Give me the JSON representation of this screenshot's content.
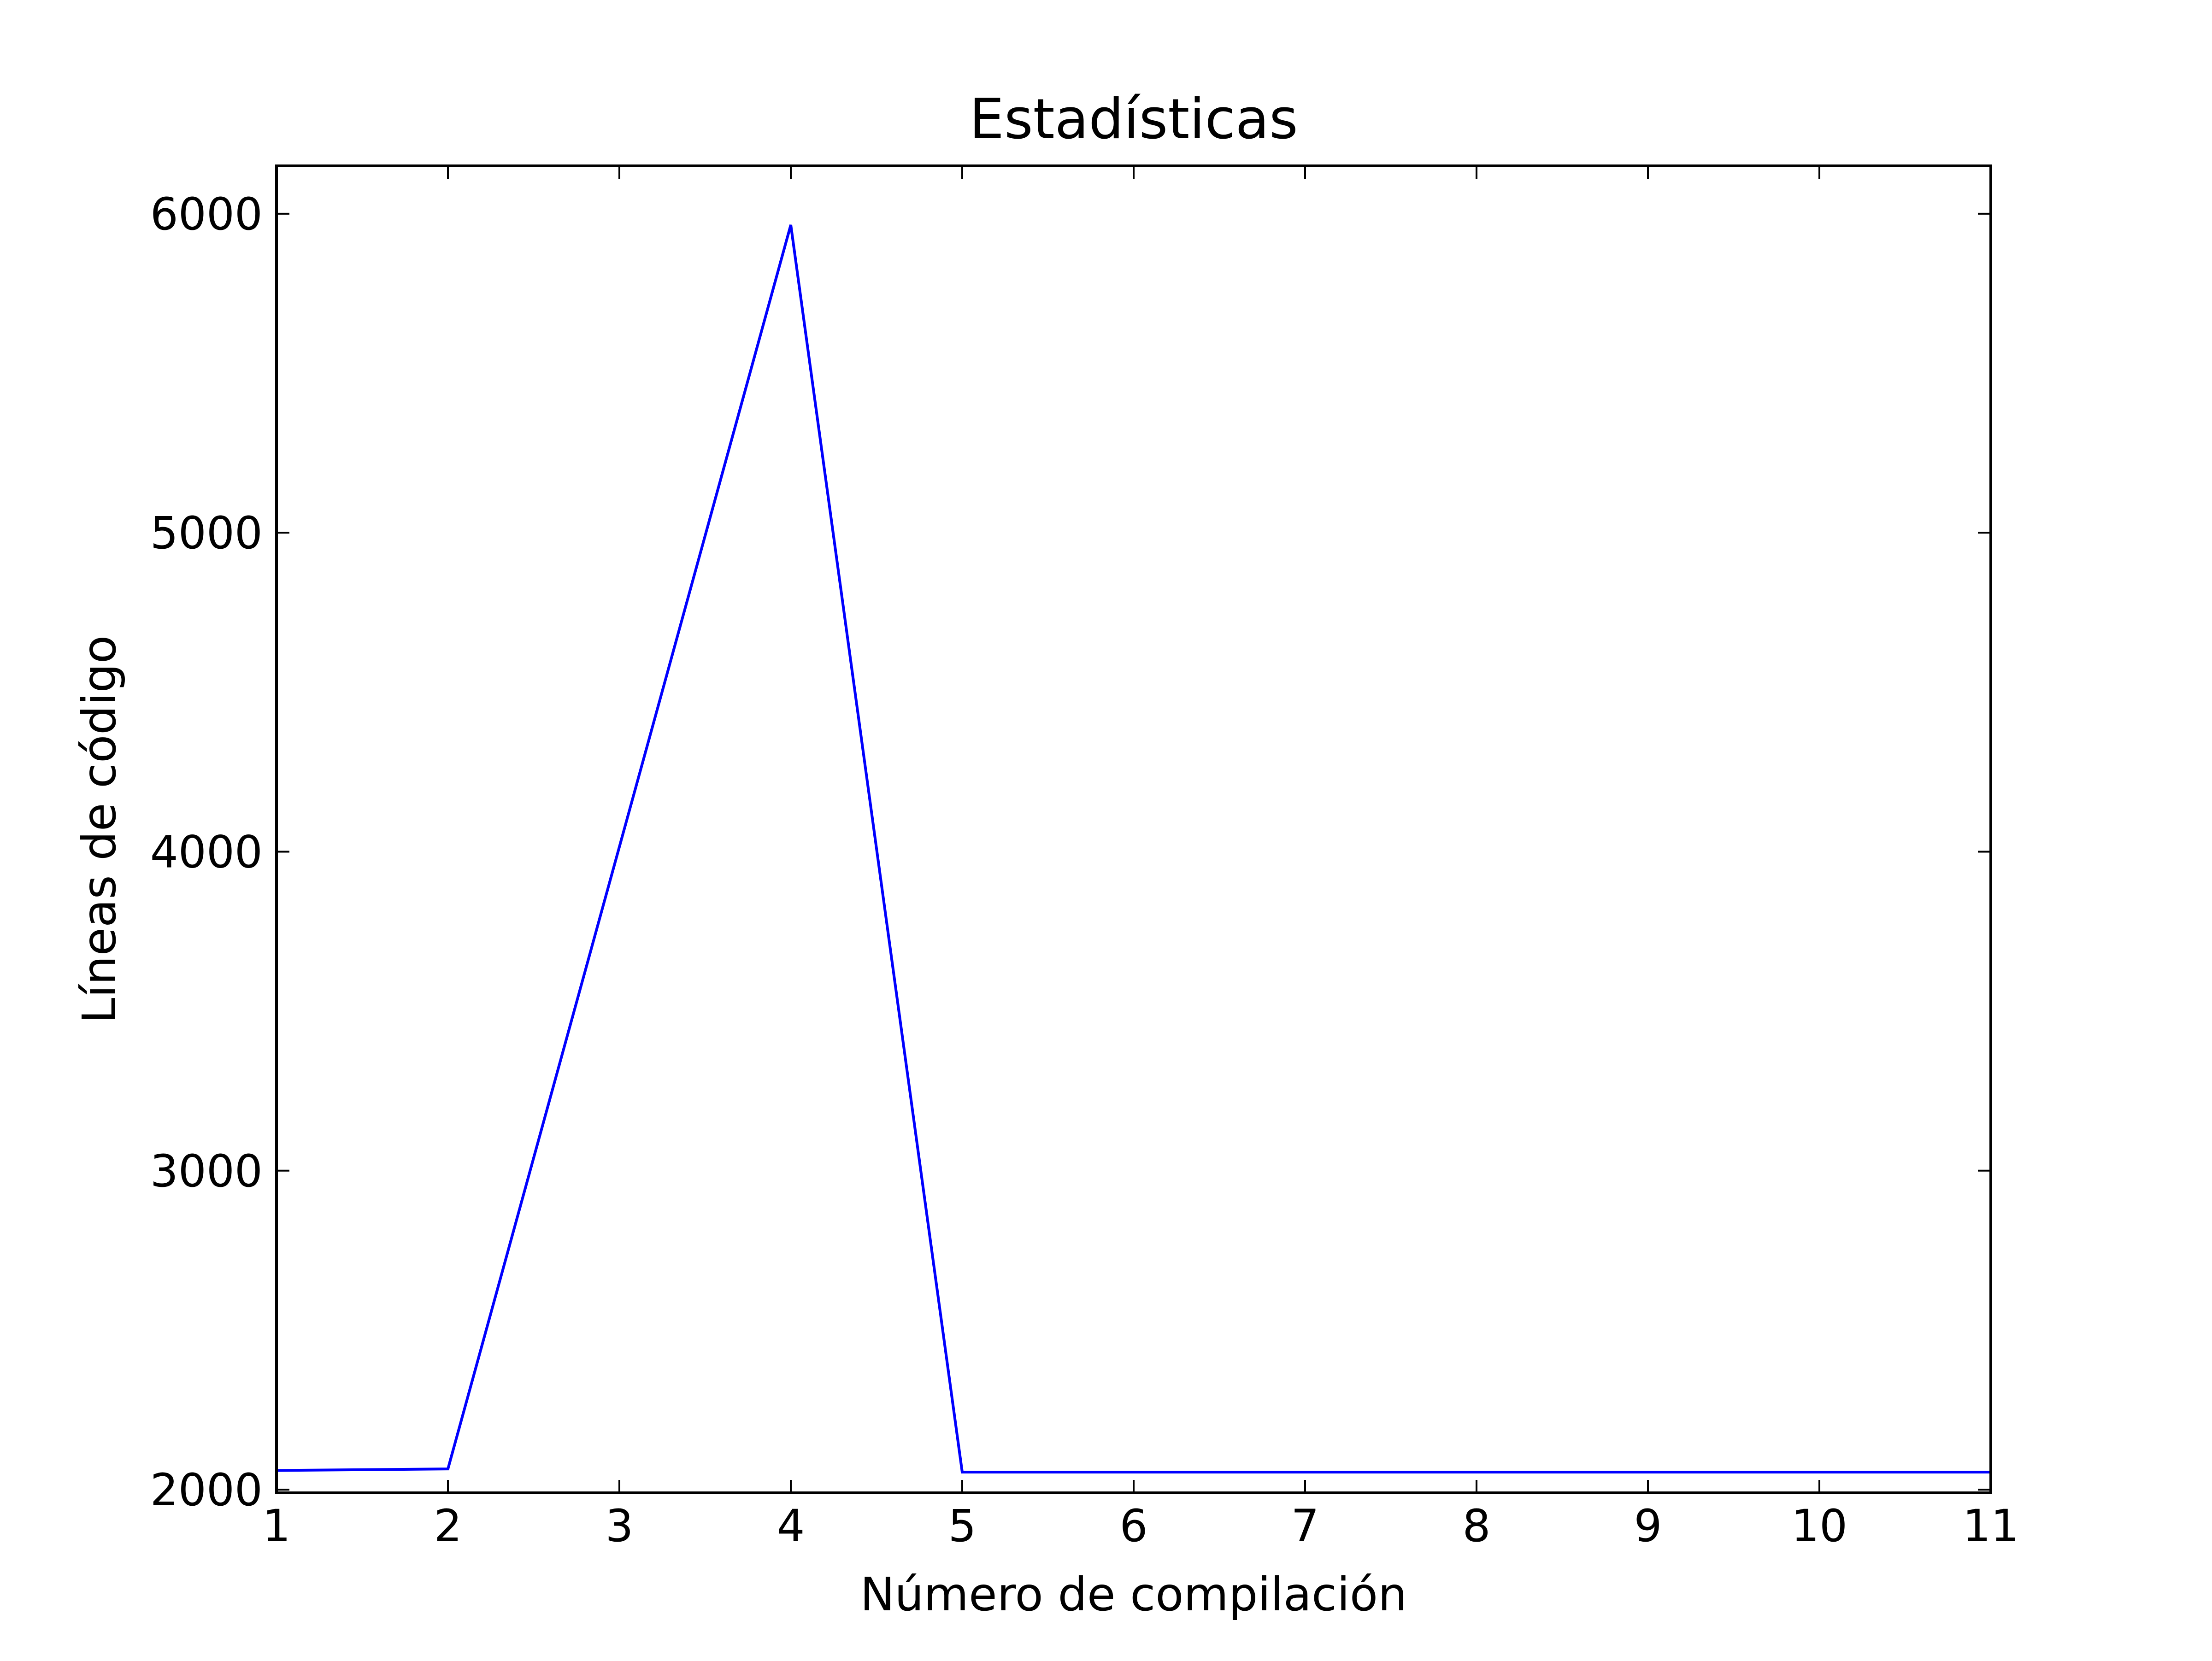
{
  "chart_data": {
    "type": "line",
    "title": "Estadísticas",
    "xlabel": "Número de compilación",
    "ylabel": "Líneas de código",
    "xlim": [
      1,
      11
    ],
    "ylim": [
      1990,
      6150
    ],
    "x_ticks": [
      1,
      2,
      3,
      4,
      5,
      6,
      7,
      8,
      9,
      10,
      11
    ],
    "x_tick_labels": [
      "1",
      "2",
      "3",
      "4",
      "5",
      "6",
      "7",
      "8",
      "9",
      "10",
      "11"
    ],
    "y_ticks": [
      2000,
      3000,
      4000,
      5000,
      6000
    ],
    "y_tick_labels": [
      "2000",
      "3000",
      "4000",
      "5000",
      "6000"
    ],
    "grid": false,
    "series": [
      {
        "color": "#0000ff",
        "x": [
          1,
          2,
          4,
          5,
          6,
          7,
          8,
          9,
          10,
          11
        ],
        "y": [
          2060,
          2065,
          5965,
          2055,
          2055,
          2055,
          2055,
          2055,
          2055,
          2055
        ]
      }
    ]
  }
}
